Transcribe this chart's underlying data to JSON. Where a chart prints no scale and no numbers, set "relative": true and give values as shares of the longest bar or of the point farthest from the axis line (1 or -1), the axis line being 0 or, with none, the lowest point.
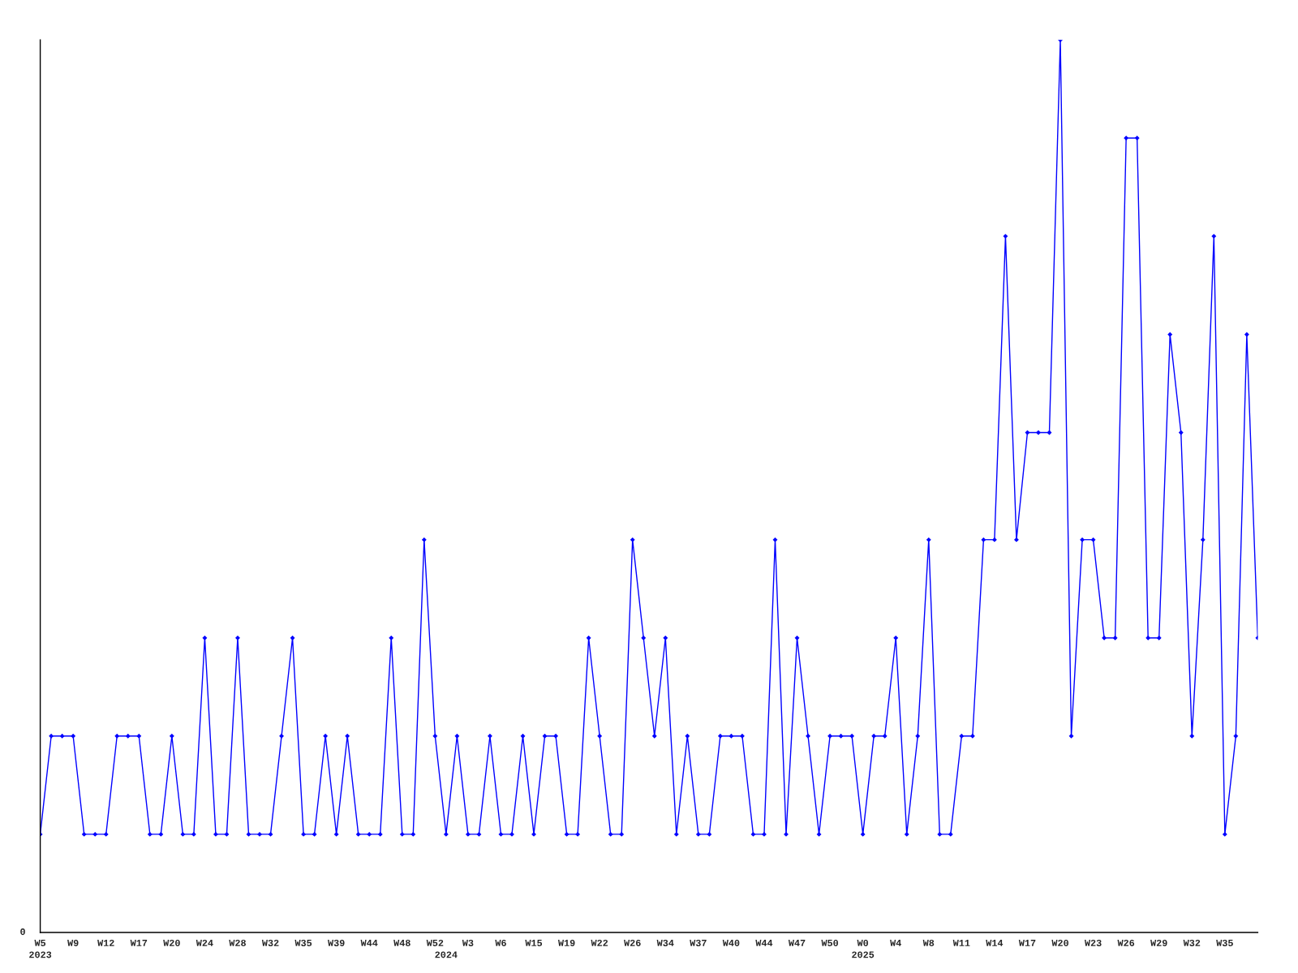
{
  "chart_data": {
    "type": "line",
    "relative": true,
    "marker": "diamond",
    "line_style": "solid",
    "grid": false,
    "legend": false,
    "categories": [
      "W5\n2023",
      null,
      null,
      "W9",
      null,
      null,
      "W12",
      null,
      null,
      "W17",
      null,
      null,
      "W20",
      null,
      null,
      "W24",
      null,
      null,
      "W28",
      null,
      null,
      "W32",
      null,
      null,
      "W35",
      null,
      null,
      "W39",
      null,
      null,
      "W44",
      null,
      null,
      "W48",
      null,
      null,
      "W52",
      "\n2024",
      null,
      "W3",
      null,
      null,
      "W6",
      null,
      null,
      "W15",
      null,
      null,
      "W19",
      null,
      null,
      "W22",
      null,
      null,
      "W26",
      null,
      null,
      "W34",
      null,
      null,
      "W37",
      null,
      null,
      "W40",
      null,
      null,
      "W44",
      null,
      null,
      "W47",
      null,
      null,
      "W50",
      null,
      null,
      "W0\n2025",
      null,
      null,
      "W4",
      null,
      null,
      "W8",
      null,
      null,
      "W11",
      null,
      null,
      "W14",
      null,
      null,
      "W17",
      null,
      null,
      "W20",
      null,
      null,
      "W23",
      null,
      null,
      "W26",
      null,
      null,
      "W29",
      null,
      null,
      "W32",
      null,
      null,
      "W35",
      null,
      null,
      null
    ],
    "series": [
      {
        "color": "#0000ff",
        "values": [
          0.11,
          0.22,
          0.22,
          0.22,
          0.11,
          0.11,
          0.11,
          0.22,
          0.22,
          0.22,
          0.11,
          0.11,
          0.22,
          0.11,
          0.11,
          0.33,
          0.11,
          0.11,
          0.33,
          0.11,
          0.11,
          0.11,
          0.22,
          0.33,
          0.11,
          0.11,
          0.22,
          0.11,
          0.22,
          0.11,
          0.11,
          0.11,
          0.33,
          0.11,
          0.11,
          0.44,
          0.22,
          0.11,
          0.22,
          0.11,
          0.11,
          0.22,
          0.11,
          0.11,
          0.22,
          0.11,
          0.22,
          0.22,
          0.11,
          0.11,
          0.33,
          0.22,
          0.11,
          0.11,
          0.44,
          0.33,
          0.22,
          0.33,
          0.11,
          0.22,
          0.11,
          0.11,
          0.22,
          0.22,
          0.22,
          0.11,
          0.11,
          0.44,
          0.11,
          0.33,
          0.22,
          0.11,
          0.22,
          0.22,
          0.22,
          0.11,
          0.22,
          0.22,
          0.33,
          0.11,
          0.22,
          0.44,
          0.11,
          0.11,
          0.22,
          0.22,
          0.44,
          0.44,
          0.78,
          0.44,
          0.56,
          0.56,
          0.56,
          1,
          0.22,
          0.44,
          0.44,
          0.33,
          0.33,
          0.89,
          0.89,
          0.33,
          0.33,
          0.67,
          0.56,
          0.22,
          0.44,
          0.78,
          0.11,
          0.22,
          0.67,
          0.33
        ]
      }
    ],
    "annotations": [
      "0"
    ]
  }
}
